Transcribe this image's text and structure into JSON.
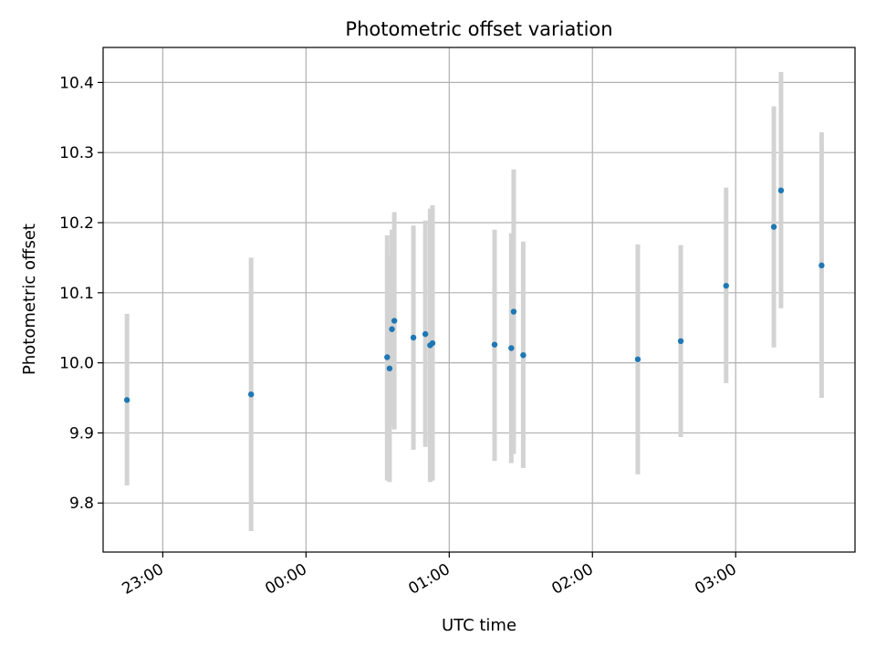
{
  "chart_data": {
    "type": "scatter",
    "title": "Photometric offset variation",
    "xlabel": "UTC time",
    "ylabel": "Photometric offset",
    "x_tick_labels": [
      "23:00",
      "00:00",
      "01:00",
      "02:00",
      "03:00"
    ],
    "x_tick_hours": [
      23,
      24,
      25,
      26,
      27
    ],
    "y_ticks": [
      9.8,
      9.9,
      10.0,
      10.1,
      10.2,
      10.3,
      10.4
    ],
    "y_tick_labels": [
      "9.8",
      "9.9",
      "10.0",
      "10.1",
      "10.2",
      "10.3",
      "10.4"
    ],
    "xlim": [
      "22:35",
      "03:50"
    ],
    "ylim": [
      9.73,
      10.45
    ],
    "grid": true,
    "marker_color": "#1f77b4",
    "errorbar_color": "#d3d3d3",
    "points": [
      {
        "time": "22:45",
        "y": 9.947,
        "ylow": 9.825,
        "yhigh": 10.07
      },
      {
        "time": "23:37",
        "y": 9.955,
        "ylow": 9.76,
        "yhigh": 10.15
      },
      {
        "time": "00:34",
        "y": 10.008,
        "ylow": 9.832,
        "yhigh": 10.182
      },
      {
        "time": "00:35",
        "y": 9.992,
        "ylow": 9.83,
        "yhigh": 10.153
      },
      {
        "time": "00:36",
        "y": 10.048,
        "ylow": 9.91,
        "yhigh": 10.19
      },
      {
        "time": "00:37",
        "y": 10.06,
        "ylow": 9.905,
        "yhigh": 10.215
      },
      {
        "time": "00:45",
        "y": 10.036,
        "ylow": 9.876,
        "yhigh": 10.196
      },
      {
        "time": "00:50",
        "y": 10.041,
        "ylow": 9.88,
        "yhigh": 10.203
      },
      {
        "time": "00:52",
        "y": 10.025,
        "ylow": 9.83,
        "yhigh": 10.22
      },
      {
        "time": "00:53",
        "y": 10.028,
        "ylow": 9.832,
        "yhigh": 10.225
      },
      {
        "time": "01:19",
        "y": 10.026,
        "ylow": 9.86,
        "yhigh": 10.19
      },
      {
        "time": "01:26",
        "y": 10.021,
        "ylow": 9.857,
        "yhigh": 10.185
      },
      {
        "time": "01:27",
        "y": 10.073,
        "ylow": 9.87,
        "yhigh": 10.276
      },
      {
        "time": "01:31",
        "y": 10.011,
        "ylow": 9.85,
        "yhigh": 10.173
      },
      {
        "time": "02:19",
        "y": 10.005,
        "ylow": 9.841,
        "yhigh": 10.169
      },
      {
        "time": "02:37",
        "y": 10.031,
        "ylow": 9.894,
        "yhigh": 10.168
      },
      {
        "time": "02:56",
        "y": 10.11,
        "ylow": 9.971,
        "yhigh": 10.25
      },
      {
        "time": "03:16",
        "y": 10.194,
        "ylow": 10.022,
        "yhigh": 10.366
      },
      {
        "time": "03:19",
        "y": 10.246,
        "ylow": 10.078,
        "yhigh": 10.415
      },
      {
        "time": "03:36",
        "y": 10.139,
        "ylow": 9.95,
        "yhigh": 10.329
      }
    ]
  }
}
